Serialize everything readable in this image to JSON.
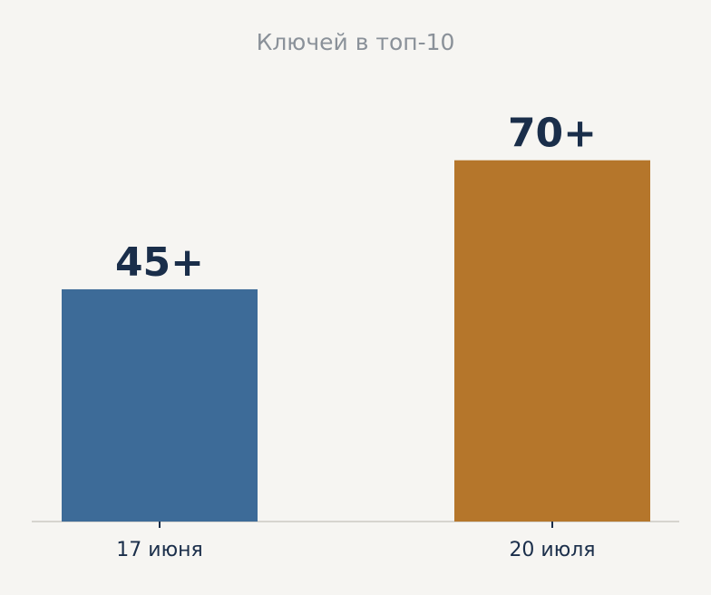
{
  "chart_data": {
    "type": "bar",
    "title": "Ключей в топ-10",
    "categories": [
      "17 июня",
      "20 июля"
    ],
    "values": [
      45,
      70
    ],
    "value_labels": [
      "45+",
      "70+"
    ],
    "colors": [
      "#3d6b98",
      "#b5762b"
    ]
  }
}
